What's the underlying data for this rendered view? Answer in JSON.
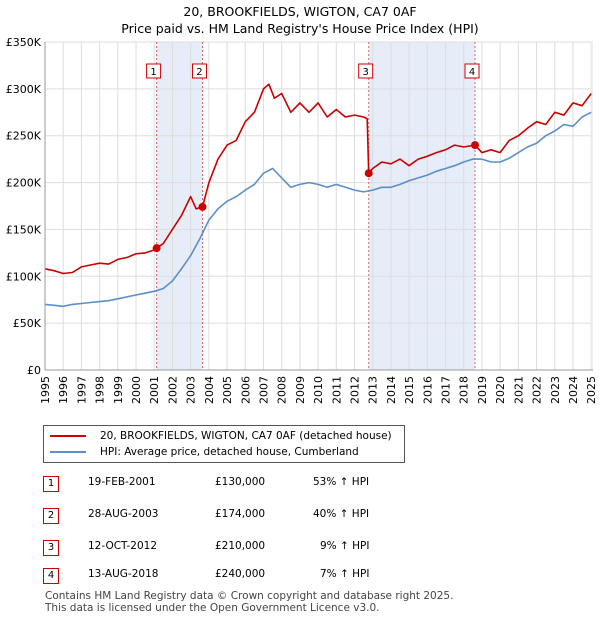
{
  "title_line1": "20, BROOKFIELDS, WIGTON, CA7 0AF",
  "title_line2": "Price paid vs. HM Land Registry's House Price Index (HPI)",
  "chart_data": {
    "type": "line",
    "xlim": [
      1995,
      2025.1
    ],
    "ylim": [
      0,
      350000
    ],
    "x_ticks": [
      1995,
      1996,
      1997,
      1998,
      1999,
      2000,
      2001,
      2002,
      2003,
      2004,
      2005,
      2006,
      2007,
      2008,
      2009,
      2010,
      2011,
      2012,
      2013,
      2014,
      2015,
      2016,
      2017,
      2018,
      2019,
      2020,
      2021,
      2022,
      2023,
      2024,
      2025
    ],
    "y_ticks": [
      {
        "value": 0,
        "label": "£0"
      },
      {
        "value": 50000,
        "label": "£50K"
      },
      {
        "value": 100000,
        "label": "£100K"
      },
      {
        "value": 150000,
        "label": "£150K"
      },
      {
        "value": 200000,
        "label": "£200K"
      },
      {
        "value": 250000,
        "label": "£250K"
      },
      {
        "value": 300000,
        "label": "£300K"
      },
      {
        "value": 350000,
        "label": "£350K"
      }
    ],
    "shaded_ranges": [
      [
        2001.13,
        2003.65
      ],
      [
        2012.78,
        2018.62
      ]
    ],
    "sales": [
      {
        "id": "1",
        "x": 2001.13,
        "y": 130000
      },
      {
        "id": "2",
        "x": 2003.65,
        "y": 174000
      },
      {
        "id": "3",
        "x": 2012.78,
        "y": 210000
      },
      {
        "id": "4",
        "x": 2018.62,
        "y": 240000
      }
    ],
    "series": [
      {
        "name": "20, BROOKFIELDS, WIGTON, CA7 0AF (detached house)",
        "color": "#cc0000",
        "x": [
          1995,
          1995.5,
          1996,
          1996.5,
          1997,
          1997.5,
          1998,
          1998.5,
          1999,
          1999.5,
          2000,
          2000.5,
          2001,
          2001.13,
          2001.5,
          2002,
          2002.5,
          2003,
          2003.3,
          2003.65,
          2004,
          2004.5,
          2005,
          2005.5,
          2006,
          2006.5,
          2007,
          2007.3,
          2007.6,
          2008,
          2008.5,
          2009,
          2009.5,
          2010,
          2010.5,
          2011,
          2011.5,
          2012,
          2012.5,
          2012.7,
          2012.78,
          2013,
          2013.5,
          2014,
          2014.5,
          2015,
          2015.5,
          2016,
          2016.5,
          2017,
          2017.5,
          2018,
          2018.62,
          2019,
          2019.5,
          2020,
          2020.5,
          2021,
          2021.5,
          2022,
          2022.5,
          2023,
          2023.5,
          2024,
          2024.5,
          2025
        ],
        "y": [
          108000,
          106000,
          103000,
          104000,
          110000,
          112000,
          114000,
          113000,
          118000,
          120000,
          124000,
          125000,
          128000,
          130000,
          135000,
          150000,
          165000,
          185000,
          172000,
          174000,
          200000,
          225000,
          240000,
          245000,
          265000,
          275000,
          300000,
          305000,
          290000,
          295000,
          275000,
          285000,
          275000,
          285000,
          270000,
          278000,
          270000,
          272000,
          270000,
          268000,
          210000,
          215000,
          222000,
          220000,
          225000,
          218000,
          225000,
          228000,
          232000,
          235000,
          240000,
          238000,
          240000,
          232000,
          235000,
          232000,
          245000,
          250000,
          258000,
          265000,
          262000,
          275000,
          272000,
          285000,
          282000,
          295000
        ]
      },
      {
        "name": "HPI: Average price, detached house, Cumberland",
        "color": "#5b8fc9",
        "x": [
          1995,
          1995.5,
          1996,
          1996.5,
          1997,
          1997.5,
          1998,
          1998.5,
          1999,
          1999.5,
          2000,
          2000.5,
          2001,
          2001.5,
          2002,
          2002.5,
          2003,
          2003.5,
          2004,
          2004.5,
          2005,
          2005.5,
          2006,
          2006.5,
          2007,
          2007.5,
          2008,
          2008.5,
          2009,
          2009.5,
          2010,
          2010.5,
          2011,
          2011.5,
          2012,
          2012.5,
          2013,
          2013.5,
          2014,
          2014.5,
          2015,
          2015.5,
          2016,
          2016.5,
          2017,
          2017.5,
          2018,
          2018.5,
          2019,
          2019.5,
          2020,
          2020.5,
          2021,
          2021.5,
          2022,
          2022.5,
          2023,
          2023.5,
          2024,
          2024.5,
          2025
        ],
        "y": [
          70000,
          69000,
          68000,
          70000,
          71000,
          72000,
          73000,
          74000,
          76000,
          78000,
          80000,
          82000,
          84000,
          87000,
          95000,
          108000,
          122000,
          140000,
          160000,
          172000,
          180000,
          185000,
          192000,
          198000,
          210000,
          215000,
          205000,
          195000,
          198000,
          200000,
          198000,
          195000,
          198000,
          195000,
          192000,
          190000,
          192000,
          195000,
          195000,
          198000,
          202000,
          205000,
          208000,
          212000,
          215000,
          218000,
          222000,
          225000,
          225000,
          222000,
          222000,
          226000,
          232000,
          238000,
          242000,
          250000,
          255000,
          262000,
          260000,
          270000,
          275000
        ]
      }
    ]
  },
  "legend": {
    "red_label": "20, BROOKFIELDS, WIGTON, CA7 0AF (detached house)",
    "blue_label": "HPI: Average price, detached house, Cumberland"
  },
  "transactions": [
    {
      "id": "1",
      "date": "19-FEB-2001",
      "price": "£130,000",
      "hpi": "53% ↑ HPI"
    },
    {
      "id": "2",
      "date": "28-AUG-2003",
      "price": "£174,000",
      "hpi": "40% ↑ HPI"
    },
    {
      "id": "3",
      "date": "12-OCT-2012",
      "price": "£210,000",
      "hpi": "9% ↑ HPI"
    },
    {
      "id": "4",
      "date": "13-AUG-2018",
      "price": "£240,000",
      "hpi": "7% ↑ HPI"
    }
  ],
  "footer_line1": "Contains HM Land Registry data © Crown copyright and database right 2025.",
  "footer_line2": "This data is licensed under the Open Government Licence v3.0."
}
